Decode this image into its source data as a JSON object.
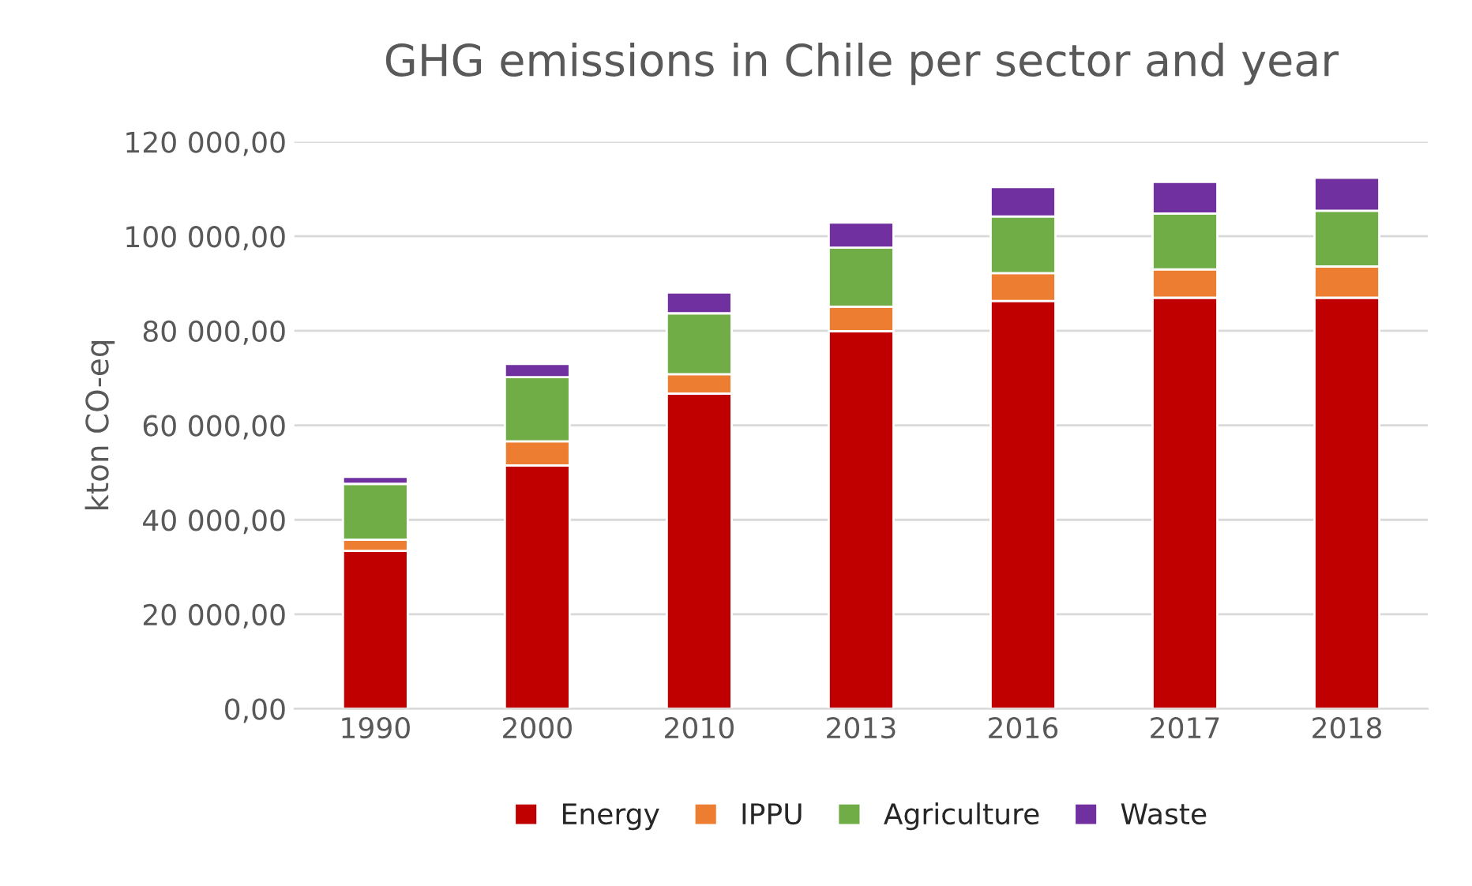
{
  "chart_data": {
    "type": "bar",
    "title": "GHG emissions in Chile per sector and year",
    "ylabel": "kton CO-eq",
    "categories": [
      "1990",
      "2000",
      "2010",
      "2013",
      "2016",
      "2017",
      "2018"
    ],
    "stacked": true,
    "series": [
      {
        "name": "Energy",
        "color": "#c00000",
        "values": [
          33400,
          51500,
          66700,
          79900,
          86300,
          87000,
          87000
        ]
      },
      {
        "name": "IPPU",
        "color": "#ed7d31",
        "values": [
          2400,
          5100,
          4100,
          5200,
          5900,
          6000,
          6600
        ]
      },
      {
        "name": "Agriculture",
        "color": "#70ad47",
        "values": [
          11800,
          13600,
          12900,
          12500,
          12000,
          11800,
          11800
        ]
      },
      {
        "name": "Waste",
        "color": "#7030a0",
        "values": [
          1500,
          2800,
          4400,
          5300,
          6200,
          6700,
          7000
        ]
      }
    ],
    "ylim": [
      0,
      120000
    ],
    "yticks": [
      {
        "value": 0,
        "label": "0,00"
      },
      {
        "value": 20000,
        "label": "20 000,00"
      },
      {
        "value": 40000,
        "label": "40 000,00"
      },
      {
        "value": 60000,
        "label": "60 000,00"
      },
      {
        "value": 80000,
        "label": "80 000,00"
      },
      {
        "value": 100000,
        "label": "100 000,00"
      },
      {
        "value": 120000,
        "label": "120 000,00"
      }
    ],
    "grid": "y",
    "legend": "bottom"
  }
}
